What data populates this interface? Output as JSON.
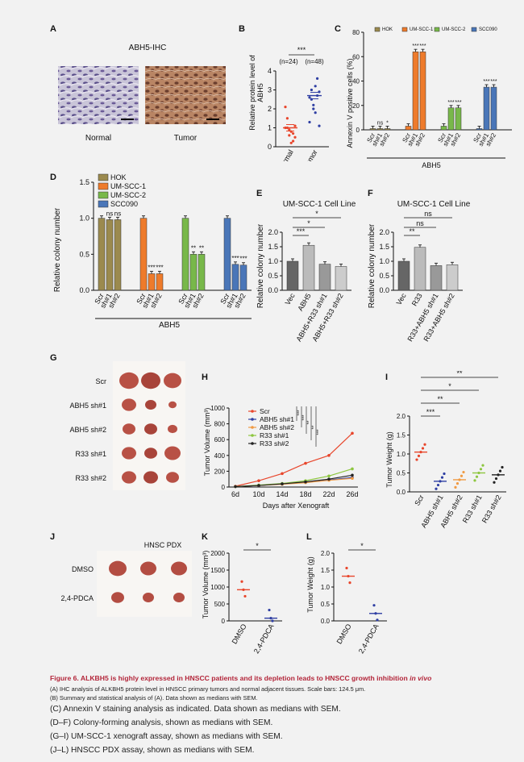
{
  "panels": {
    "A": {
      "letter": "A",
      "title": "ABH5-IHC",
      "left": "Normal",
      "right": "Tumor"
    },
    "B": {
      "letter": "B",
      "ylabel": "Relative protein level of ABH5",
      "n_normal": "(n=24)",
      "n_tumor": "(n=48)",
      "sig": "***"
    },
    "C": {
      "letter": "C",
      "ylabel": "Annexin V positive cells (%)",
      "group_label": "ABH5"
    },
    "D": {
      "letter": "D",
      "ylabel": "Relative colony number",
      "group_label": "ABH5"
    },
    "E": {
      "letter": "E",
      "title": "UM-SCC-1 Cell Line",
      "ylabel": "Relative colony number"
    },
    "F": {
      "letter": "F",
      "title": "UM-SCC-1 Cell Line",
      "ylabel": "Relative colony number"
    },
    "G": {
      "letter": "G",
      "rows": [
        "Scr",
        "ABH5 sh#1",
        "ABH5 sh#2",
        "R33 sh#1",
        "R33 sh#2"
      ]
    },
    "H": {
      "letter": "H",
      "ylabel": "Tumor Volume (mm³)",
      "xlabel": "Days after Xenograft"
    },
    "I": {
      "letter": "I",
      "ylabel": "Tumor Weight (g)"
    },
    "J": {
      "letter": "J",
      "title": "HNSC PDX",
      "rows": [
        "DMSO",
        "2,4-PDCA"
      ]
    },
    "K": {
      "letter": "K",
      "ylabel": "Tumor Volume (mm³)"
    },
    "L": {
      "letter": "L",
      "ylabel": "Tumor Weight (g)"
    }
  },
  "colors": {
    "hok": "#9b8a4e",
    "umscc1": "#ee7b2b",
    "umscc2": "#78b84a",
    "scc090": "#4a76b8",
    "red": "#e8462c",
    "blue": "#2f3fa3",
    "orange": "#f09a43",
    "green": "#8dc63f",
    "black": "#222222",
    "caption": "#b3263a"
  },
  "chart_data": [
    {
      "panel": "B",
      "type": "scatter",
      "categories": [
        "Normal",
        "Tumor"
      ],
      "ylim": [
        0,
        4
      ],
      "yticks": [
        "0",
        "1",
        "2",
        "3",
        "4"
      ],
      "series": [
        {
          "name": "Normal",
          "values": [
            1.0,
            1.0,
            0.9,
            0.8,
            0.3,
            0.5,
            2.1,
            1.5,
            0.6,
            0.2,
            0.7,
            1.1
          ],
          "median": 1.0
        },
        {
          "name": "Tumor",
          "values": [
            2.6,
            3.0,
            2.2,
            1.8,
            3.6,
            2.9,
            1.3,
            2.5,
            2.0,
            3.2,
            2.7,
            1.1
          ],
          "median": 2.7
        }
      ],
      "title": "",
      "xlabel": "",
      "ylabel": "Relative protein level of ABH5"
    },
    {
      "panel": "C",
      "type": "bar",
      "ylim": [
        0,
        80
      ],
      "yticks": [
        "0",
        "20",
        "40",
        "60",
        "80"
      ],
      "legend": [
        "HOK",
        "UM-SCC-1",
        "UM-SCC-2",
        "SCC090"
      ],
      "categories": [
        "Scr",
        "sh#1",
        "sh#2"
      ],
      "series": [
        {
          "name": "HOK",
          "values": [
            1,
            1,
            1
          ],
          "sig": [
            "",
            "ns",
            "*"
          ]
        },
        {
          "name": "UM-SCC-1",
          "values": [
            3,
            64,
            64
          ],
          "sig": [
            "",
            "***",
            "***"
          ]
        },
        {
          "name": "UM-SCC-2",
          "values": [
            3,
            18,
            18
          ],
          "sig": [
            "",
            "***",
            "***"
          ]
        },
        {
          "name": "SCC090",
          "values": [
            1,
            35,
            35
          ],
          "sig": [
            "",
            "***",
            "***"
          ]
        }
      ]
    },
    {
      "panel": "D",
      "type": "bar",
      "ylim": [
        0,
        1.5
      ],
      "yticks": [
        "0.0",
        "0.5",
        "1.0",
        "1.5"
      ],
      "legend": [
        "HOK",
        "UM-SCC-1",
        "UM-SCC-2",
        "SCC090"
      ],
      "categories": [
        "Scr",
        "sh#1",
        "sh#2"
      ],
      "series": [
        {
          "name": "HOK",
          "values": [
            1.0,
            0.98,
            0.98
          ],
          "sig": [
            "",
            "ns",
            "ns"
          ]
        },
        {
          "name": "UM-SCC-1",
          "values": [
            1.0,
            0.23,
            0.23
          ],
          "sig": [
            "",
            "***",
            "***"
          ]
        },
        {
          "name": "UM-SCC-2",
          "values": [
            1.0,
            0.5,
            0.5
          ],
          "sig": [
            "",
            "**",
            "**"
          ]
        },
        {
          "name": "SCC090",
          "values": [
            1.0,
            0.36,
            0.35
          ],
          "sig": [
            "",
            "***",
            "***"
          ]
        }
      ]
    },
    {
      "panel": "E",
      "type": "bar",
      "ylim": [
        0,
        2.0
      ],
      "yticks": [
        "0.0",
        "0.5",
        "1.0",
        "1.5",
        "2.0"
      ],
      "categories": [
        "Vec",
        "ABH5",
        "ABH5+R33 sh#1",
        "ABH5+R33 sh#2"
      ],
      "values": [
        1.0,
        1.55,
        0.9,
        0.82
      ],
      "brackets": [
        "***",
        "*",
        "*"
      ]
    },
    {
      "panel": "F",
      "type": "bar",
      "ylim": [
        0,
        2.0
      ],
      "yticks": [
        "0.0",
        "0.5",
        "1.0",
        "1.5",
        "2.0"
      ],
      "categories": [
        "Vec",
        "R33",
        "R33+ABH5 sh#1",
        "R33+ABH5 sh#2"
      ],
      "values": [
        1.0,
        1.48,
        0.85,
        0.88
      ],
      "brackets": [
        "**",
        "ns",
        "ns"
      ]
    },
    {
      "panel": "H",
      "type": "line",
      "x": [
        "6d",
        "10d",
        "14d",
        "18d",
        "22d",
        "26d"
      ],
      "ylim": [
        0,
        1000
      ],
      "yticks": [
        "0",
        "200",
        "400",
        "600",
        "800",
        "1000"
      ],
      "series": [
        {
          "name": "Scr",
          "values": [
            10,
            80,
            170,
            300,
            400,
            680
          ]
        },
        {
          "name": "ABH5 sh#1",
          "values": [
            5,
            20,
            40,
            60,
            90,
            120
          ]
        },
        {
          "name": "ABH5 sh#2",
          "values": [
            5,
            20,
            35,
            55,
            85,
            110
          ]
        },
        {
          "name": "R33 sh#1",
          "values": [
            5,
            25,
            45,
            80,
            140,
            230
          ]
        },
        {
          "name": "R33 sh#2",
          "values": [
            5,
            20,
            40,
            65,
            100,
            150
          ]
        }
      ],
      "sig": [
        "***",
        "***",
        "**",
        "**",
        "***"
      ]
    },
    {
      "panel": "I",
      "type": "scatter",
      "categories": [
        "Scr",
        "ABH5 sh#1",
        "ABH5 sh#2",
        "R33 sh#1",
        "R33 sh#2"
      ],
      "ylim": [
        0,
        2.0
      ],
      "yticks": [
        "0.0",
        "0.5",
        "1.0",
        "1.5",
        "2.0"
      ],
      "medians": [
        1.05,
        0.28,
        0.32,
        0.5,
        0.45
      ],
      "brackets": [
        "***",
        "**",
        "*",
        "**"
      ]
    },
    {
      "panel": "K",
      "type": "scatter",
      "categories": [
        "DMSO",
        "2,4-PDCA"
      ],
      "ylim": [
        0,
        2000
      ],
      "yticks": [
        "0",
        "500",
        "1000",
        "1500",
        "2000"
      ],
      "medians": [
        920,
        80
      ],
      "sig": "*"
    },
    {
      "panel": "L",
      "type": "scatter",
      "categories": [
        "DMSO",
        "2,4-PDCA"
      ],
      "ylim": [
        0,
        2.0
      ],
      "yticks": [
        "0.0",
        "0.5",
        "1.0",
        "1.5",
        "2.0"
      ],
      "medians": [
        1.32,
        0.22
      ],
      "sig": "*"
    }
  ],
  "caption": {
    "title_main": "Figure 6. ALKBH5 is highly expressed in HNSCC patients and its depletion leads to HNSCC growth inhibition ",
    "title_italic": "in vivo",
    "line_a": "(A) IHC analysis of ALKBH5 protein level in HNSCC primary tumors and normal adjacent tissues. Scale bars: 124.5 μm.",
    "line_b": "(B) Summary and statistical analysis of (A). Data shown as medians with SEM.",
    "line_c": "(C) Annexin V staining analysis as indicated. Data shown as medians with SEM.",
    "line_d": "(D–F) Colony-forming analysis, shown as medians with SEM.",
    "line_g": "(G–I) UM-SCC-1 xenograft assay, shown as medians with SEM.",
    "line_j": "(J–L) HNSCC PDX assay, shown as medians with SEM."
  }
}
